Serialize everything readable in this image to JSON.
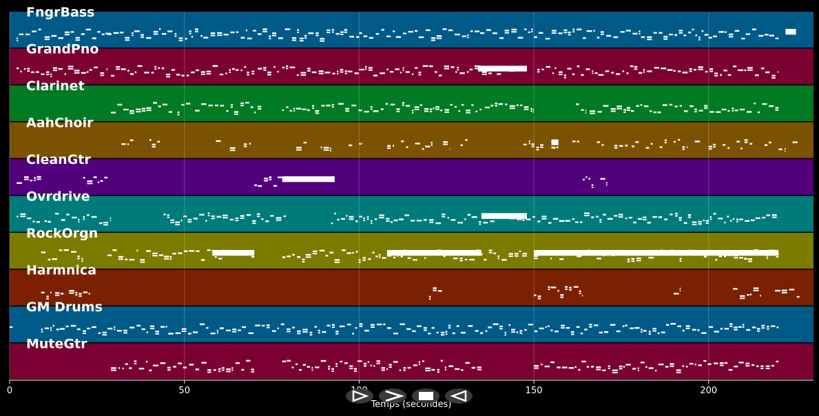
{
  "chart_data": {
    "type": "piano-roll",
    "xlabel": "Temps (secondes)",
    "xlim": [
      0,
      230
    ],
    "xticks": [
      0,
      50,
      100,
      150,
      200
    ],
    "grid": true,
    "tracks": [
      {
        "name": "FngrBass",
        "color": "#005a87",
        "segments": [
          [
            2,
            9
          ],
          [
            10,
            29
          ],
          [
            28,
            52
          ],
          [
            52,
            68
          ],
          [
            68,
            100
          ],
          [
            100,
            120
          ],
          [
            120,
            150
          ],
          [
            150,
            180
          ],
          [
            180,
            200
          ],
          [
            200,
            220
          ]
        ],
        "blocks": [
          [
            222,
            225
          ]
        ]
      },
      {
        "name": "GrandPno",
        "color": "#7b0032",
        "segments": [
          [
            2,
            9
          ],
          [
            9,
            28
          ],
          [
            29,
            70
          ],
          [
            71,
            77
          ],
          [
            78,
            100
          ],
          [
            100,
            128
          ],
          [
            128,
            146
          ],
          [
            151,
            220
          ]
        ],
        "blocks": [
          [
            134,
            148
          ]
        ]
      },
      {
        "name": "Clarinet",
        "color": "#007a23",
        "segments": [
          [
            29,
            47
          ],
          [
            48,
            52
          ],
          [
            53,
            72
          ],
          [
            78,
            93
          ],
          [
            94,
            100
          ],
          [
            100,
            135
          ],
          [
            136,
            150
          ],
          [
            162,
            165
          ],
          [
            166,
            220
          ]
        ],
        "blocks": []
      },
      {
        "name": "AahChoir",
        "color": "#7b5200",
        "segments": [
          [
            32,
            36
          ],
          [
            40,
            43
          ],
          [
            59,
            61
          ],
          [
            63,
            65
          ],
          [
            67,
            69
          ],
          [
            82,
            85
          ],
          [
            89,
            92
          ],
          [
            97,
            98
          ],
          [
            100,
            101
          ],
          [
            108,
            110
          ],
          [
            112,
            114
          ],
          [
            116,
            121
          ],
          [
            124,
            126
          ],
          [
            129,
            131
          ],
          [
            147,
            153
          ],
          [
            155,
            157
          ],
          [
            161,
            163
          ],
          [
            168,
            170
          ],
          [
            173,
            177
          ],
          [
            178,
            180
          ],
          [
            182,
            184
          ],
          [
            186,
            188
          ],
          [
            190,
            194
          ],
          [
            196,
            198
          ],
          [
            200,
            202
          ],
          [
            204,
            206
          ],
          [
            208,
            213
          ],
          [
            216,
            218
          ],
          [
            220,
            222
          ],
          [
            224,
            226
          ]
        ],
        "blocks": [
          [
            155,
            157
          ]
        ]
      },
      {
        "name": "CleanGtr",
        "color": "#52007b",
        "segments": [
          [
            2,
            9
          ],
          [
            21,
            28
          ],
          [
            70,
            78
          ],
          [
            164,
            167
          ],
          [
            169,
            171
          ]
        ],
        "blocks": [
          [
            78,
            93
          ]
        ]
      },
      {
        "name": "Ovrdrive",
        "color": "#007b7b",
        "segments": [
          [
            2,
            9
          ],
          [
            10,
            12
          ],
          [
            13,
            20
          ],
          [
            21,
            29
          ],
          [
            44,
            79
          ],
          [
            92,
            100
          ],
          [
            100,
            151
          ],
          [
            151,
            220
          ]
        ],
        "blocks": [
          [
            135,
            148
          ]
        ]
      },
      {
        "name": "RockOrgn",
        "color": "#7b7b00",
        "segments": [
          [
            9,
            21
          ],
          [
            28,
            70
          ],
          [
            78,
            108
          ],
          [
            108,
            148
          ],
          [
            150,
            220
          ]
        ],
        "blocks": [
          [
            58,
            70
          ],
          [
            108,
            135
          ],
          [
            150,
            175
          ],
          [
            175,
            220
          ]
        ]
      },
      {
        "name": "Harmnica",
        "color": "#7b2000",
        "segments": [
          [
            9,
            12
          ],
          [
            13,
            16
          ],
          [
            17,
            21
          ],
          [
            21,
            23
          ],
          [
            120,
            124
          ],
          [
            150,
            152
          ],
          [
            154,
            164
          ],
          [
            190,
            192
          ],
          [
            207,
            215
          ],
          [
            219,
            226
          ]
        ],
        "blocks": []
      },
      {
        "name": "GM Drums",
        "color": "#005a87",
        "segments": [
          [
            0,
            1
          ],
          [
            9,
            220
          ]
        ],
        "blocks": []
      },
      {
        "name": "MuteGtr",
        "color": "#7b0032",
        "segments": [
          [
            29,
            70
          ],
          [
            78,
            135
          ],
          [
            150,
            220
          ]
        ],
        "blocks": []
      }
    ]
  },
  "controls": [
    {
      "name": "play-button",
      "icon": "play-icon"
    },
    {
      "name": "fast-forward-button",
      "icon": "fast-forward-icon"
    },
    {
      "name": "stop-button",
      "icon": "stop-icon"
    },
    {
      "name": "rewind-button",
      "icon": "rewind-icon"
    }
  ]
}
